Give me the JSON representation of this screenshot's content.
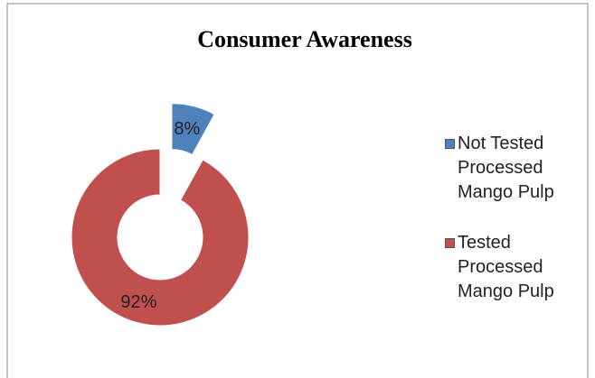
{
  "chart_data": {
    "type": "donut",
    "title": "Consumer Awareness",
    "categories": [
      "Not Tested Processed Mango Pulp",
      "Tested Processed Mango Pulp"
    ],
    "values": [
      8,
      92
    ],
    "value_labels": [
      "8%",
      "92%"
    ],
    "colors": [
      "#4f81bd",
      "#c0504d"
    ],
    "legend": "right"
  }
}
